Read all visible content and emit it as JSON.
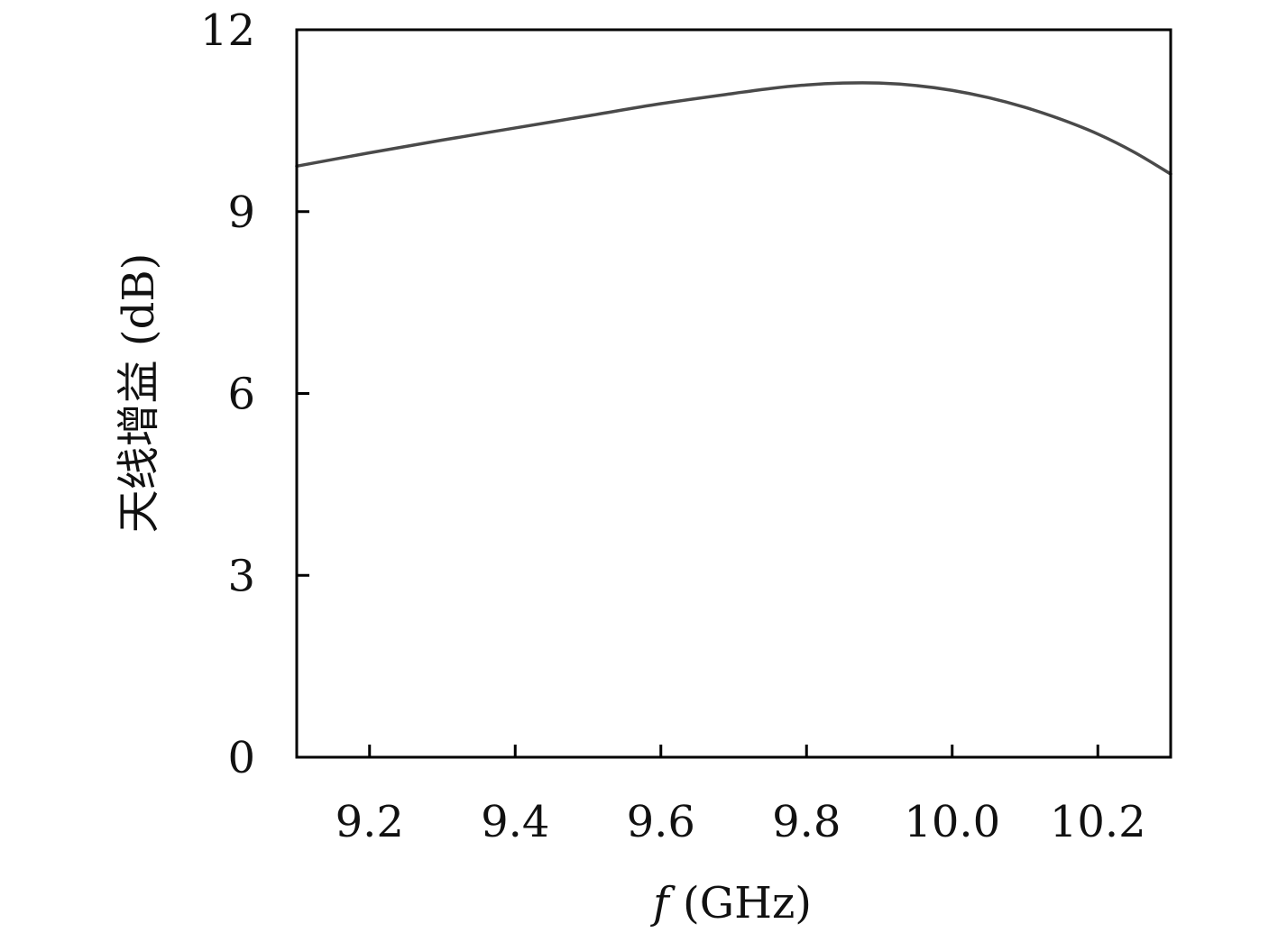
{
  "chart_data": {
    "type": "line",
    "title": "",
    "xlabel_italic": "f",
    "xlabel_unit": " (GHz)",
    "ylabel": "天线增益 (dB)",
    "xlim": [
      9.1,
      10.3
    ],
    "ylim": [
      0,
      12
    ],
    "xticks": [
      9.2,
      9.4,
      9.6,
      9.8,
      10.0,
      10.2
    ],
    "xtick_labels": [
      "9.2",
      "9.4",
      "9.6",
      "9.8",
      "10.0",
      "10.2"
    ],
    "yticks": [
      0,
      3,
      6,
      9,
      12
    ],
    "ytick_labels": [
      "0",
      "3",
      "6",
      "9",
      "12"
    ],
    "grid": false,
    "series": [
      {
        "color": "#4a4a4a",
        "x": [
          9.1,
          9.2,
          9.3,
          9.4,
          9.5,
          9.6,
          9.7,
          9.75,
          9.8,
          9.85,
          9.9,
          9.95,
          10.0,
          10.05,
          10.1,
          10.15,
          10.2,
          10.25,
          10.3
        ],
        "y": [
          9.75,
          9.97,
          10.18,
          10.38,
          10.58,
          10.78,
          10.95,
          11.03,
          11.09,
          11.12,
          11.12,
          11.08,
          11.0,
          10.88,
          10.72,
          10.52,
          10.28,
          9.98,
          9.62
        ]
      }
    ]
  }
}
